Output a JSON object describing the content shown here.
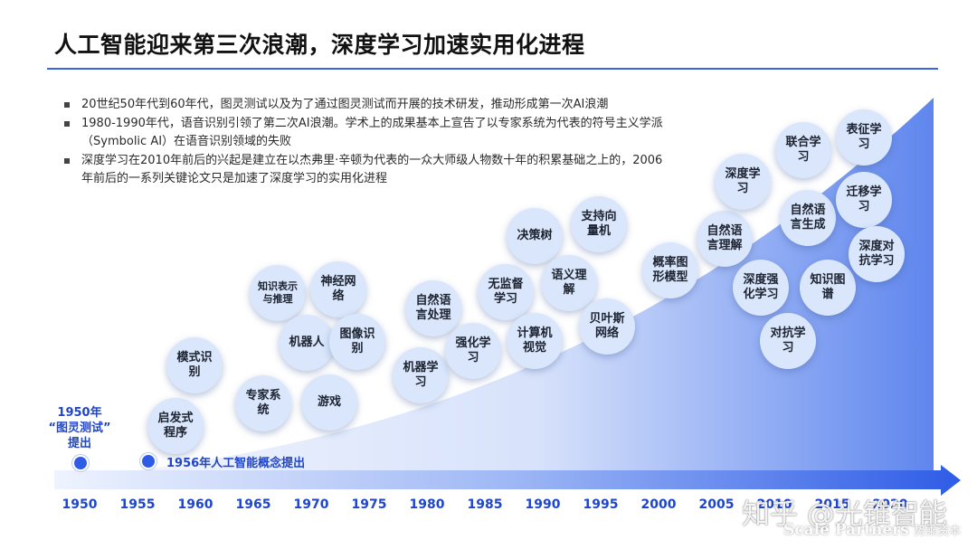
{
  "title": "人工智能迎来第三次浪潮，深度学习加速实用化进程",
  "bullets": [
    "20世纪50年代到60年代，图灵测试以及为了通过图灵测试而开展的技术研发，推动形成第一次AI浪潮",
    "1980-1990年代，语音识别引领了第二次AI浪潮。学术上的成果基本上宣告了以专家系统为代表的符号主义学派（Symbolic AI）在语音识别领域的失败",
    "深度学习在2010年前后的兴起是建立在以杰弗里·辛顿为代表的一众大师级人物数十年的积累基础之上的，2006年前后的一系列关键论文只是加速了深度学习的实用化进程"
  ],
  "timeline": {
    "years": [
      "1950",
      "1955",
      "1960",
      "1965",
      "1970",
      "1975",
      "1980",
      "1985",
      "1990",
      "1995",
      "2000",
      "2005",
      "2010",
      "2015",
      "2020"
    ],
    "milestones": {
      "m1950": {
        "year": "1950年",
        "text": "“图灵测试”",
        "sub": "提出"
      },
      "m1956": "1956年人工智能概念提出"
    }
  },
  "bubbles": [
    "启发式程序",
    "模式识别",
    "专家系统",
    "知识表示与推理",
    "神经网络",
    "机器人",
    "图像识别",
    "游戏",
    "机器学习",
    "自然语言处理",
    "强化学习",
    "无监督学习",
    "决策树",
    "支持向量机",
    "计算机视觉",
    "语义理解",
    "贝叶斯网络",
    "概率图形模型",
    "自然语言理解",
    "深度学习",
    "深度强化学习",
    "联合学习",
    "自然语言生成",
    "知识图谱",
    "对抗学习",
    "表征学习",
    "迁移学习",
    "深度对抗学习"
  ],
  "watermark": {
    "zhihu": "知乎 @光锥智能",
    "brand": "Scale Partners",
    "brand_cn": "势乘资本"
  },
  "colors": {
    "accent": "#2e5ce6",
    "bubble": "#d9e6fb",
    "wave_light": "#eef3fe",
    "wave_dark": "#5f86ee"
  }
}
